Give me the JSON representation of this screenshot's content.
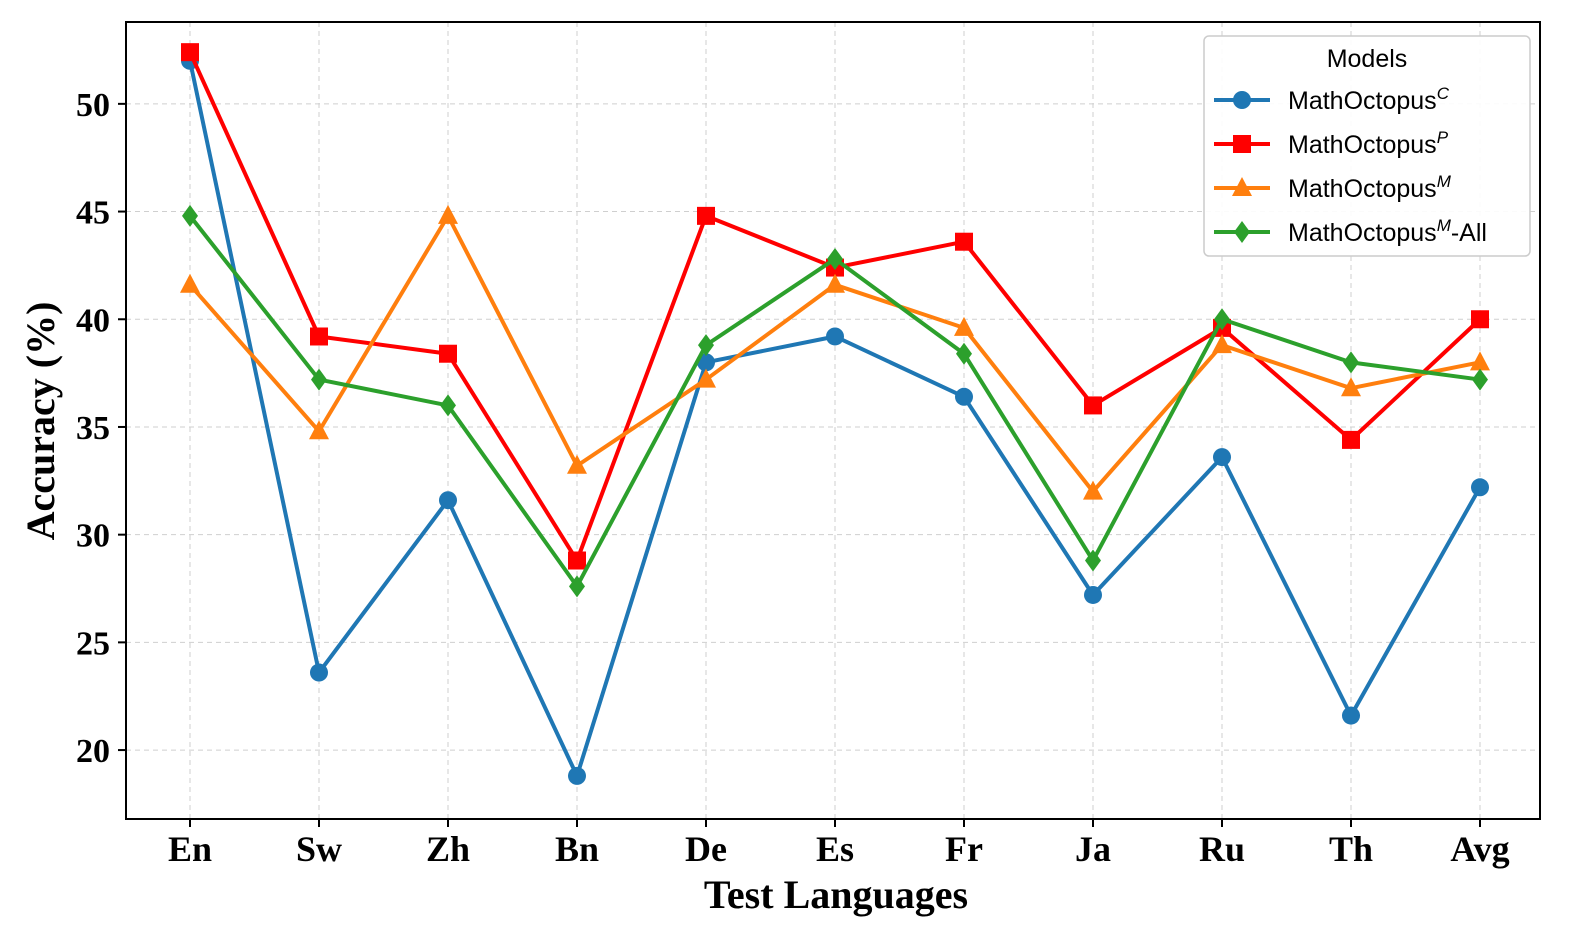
{
  "chart_data": {
    "type": "line",
    "xlabel": "Test Languages",
    "ylabel": "Accuracy (%)",
    "categories": [
      "En",
      "Sw",
      "Zh",
      "Bn",
      "De",
      "Es",
      "Fr",
      "Ja",
      "Ru",
      "Th",
      "Avg"
    ],
    "ylim": [
      16.8,
      53.8
    ],
    "yticks": [
      20,
      25,
      30,
      35,
      40,
      45,
      50
    ],
    "grid": true,
    "legend": {
      "title": "Models",
      "placement": "top-right"
    },
    "series": [
      {
        "name_base": "MathOctopus",
        "name_sup": "C",
        "name_suffix": "",
        "color": "#1f77b4",
        "marker": "circle",
        "values": [
          52.0,
          23.6,
          31.6,
          18.8,
          38.0,
          39.2,
          36.4,
          27.2,
          33.6,
          21.6,
          32.2
        ]
      },
      {
        "name_base": "MathOctopus",
        "name_sup": "P",
        "name_suffix": "",
        "color": "#ff0000",
        "marker": "square",
        "values": [
          52.4,
          39.2,
          38.4,
          28.8,
          44.8,
          42.4,
          43.6,
          36.0,
          39.6,
          34.4,
          40.0
        ]
      },
      {
        "name_base": "MathOctopus",
        "name_sup": "M",
        "name_suffix": "",
        "color": "#ff7f0e",
        "marker": "triangle",
        "values": [
          41.6,
          34.8,
          44.8,
          33.2,
          37.2,
          41.6,
          39.6,
          32.0,
          38.8,
          36.8,
          38.0
        ]
      },
      {
        "name_base": "MathOctopus",
        "name_sup": "M",
        "name_suffix": "-All",
        "color": "#2ca02c",
        "marker": "diamond",
        "values": [
          44.8,
          37.2,
          36.0,
          27.6,
          38.8,
          42.8,
          38.4,
          28.8,
          40.0,
          38.0,
          37.2
        ]
      }
    ]
  }
}
